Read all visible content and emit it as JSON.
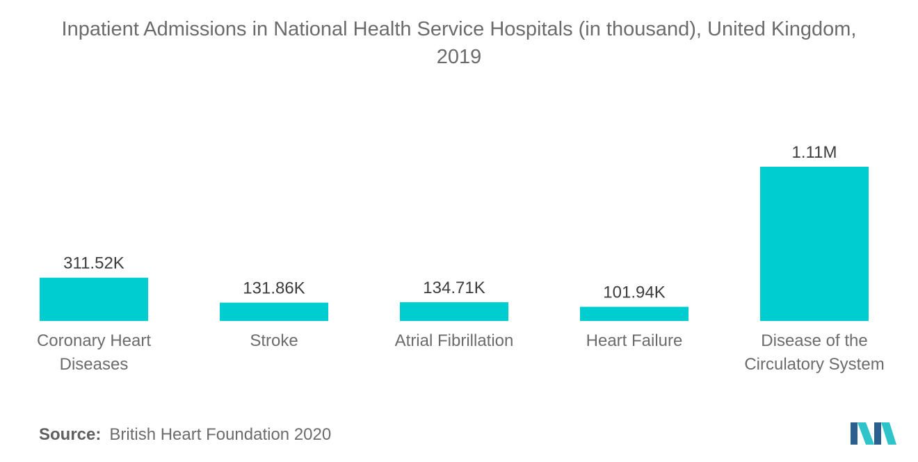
{
  "title_line1": "Inpatient Admissions in National Health Service Hospitals (in thousand), United Kingdom,",
  "title_line2": "2019",
  "source_label": "Source:",
  "source_text": "British Heart Foundation 2020",
  "colors": {
    "bar": "#00cdd0",
    "text": "#6b6b6b",
    "logo_dark": "#2b5f8f",
    "logo_light": "#2ec4c9"
  },
  "logo_icon": "mordor-intelligence-logo",
  "chart_data": {
    "type": "bar",
    "title": "Inpatient Admissions in National Health Service Hospitals (in thousand), United Kingdom, 2019",
    "categories": [
      [
        "Coronary Heart",
        "Diseases"
      ],
      [
        "Stroke"
      ],
      [
        "Atrial Fibrillation"
      ],
      [
        "Heart Failure"
      ],
      [
        "Disease of the",
        "Circulatory System"
      ]
    ],
    "values": [
      311.52,
      131.86,
      134.71,
      101.94,
      1110
    ],
    "value_labels": [
      "311.52K",
      "131.86K",
      "134.71K",
      "101.94K",
      "1.11M"
    ],
    "grid": false,
    "legend": "none"
  }
}
